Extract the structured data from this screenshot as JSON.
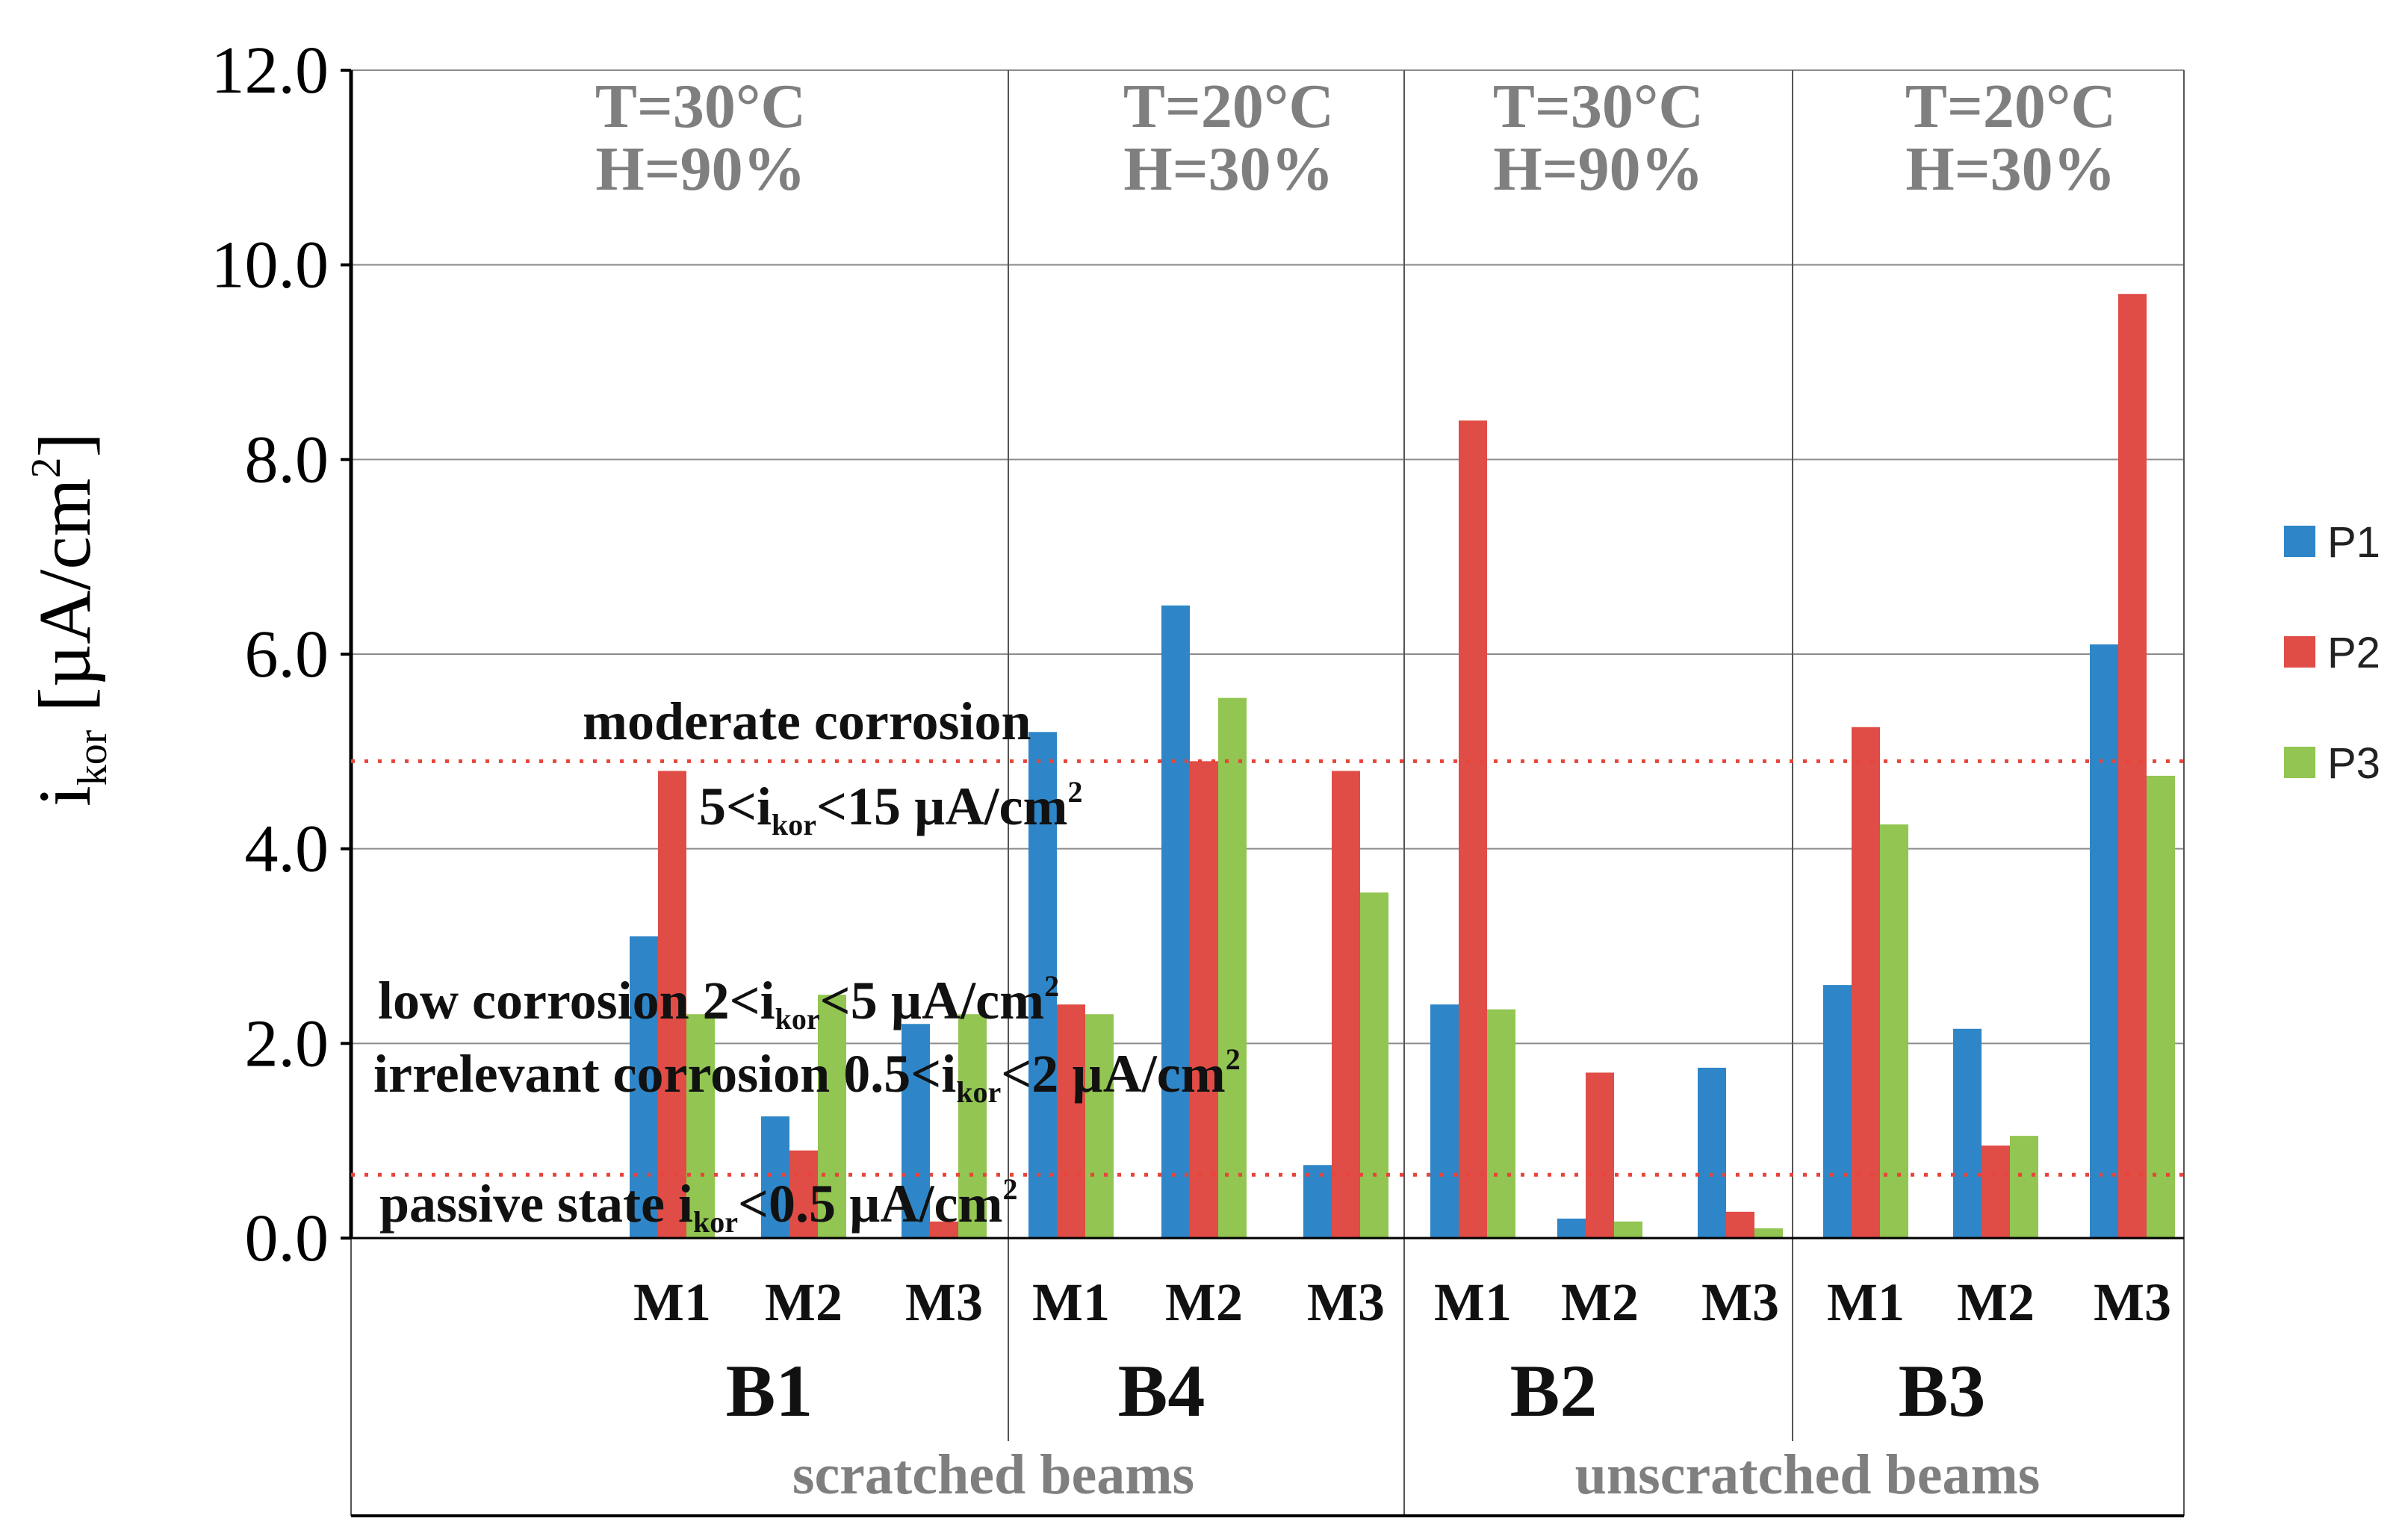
{
  "chart_data": {
    "type": "bar",
    "ylabel_main": "i",
    "ylabel_sub": "kor",
    "ylabel_unit": "[µA/cm",
    "ylabel_sup": "2",
    "ylabel_close": "]",
    "ylim": [
      0,
      12
    ],
    "yticks": [
      "0.0",
      "2.0",
      "4.0",
      "6.0",
      "8.0",
      "10.0",
      "12.0"
    ],
    "grid": true,
    "legend_position": "right",
    "series": [
      {
        "name": "P1",
        "color": "#2E86C8"
      },
      {
        "name": "P2",
        "color": "#E04C46"
      },
      {
        "name": "P3",
        "color": "#92C551"
      }
    ],
    "blocks": [
      {
        "beam": "B1",
        "conditions": [
          "T=30°C",
          "H=90%"
        ],
        "categories": [
          "M1",
          "M2",
          "M3"
        ],
        "values": [
          [
            3.1,
            4.8,
            2.3
          ],
          [
            1.25,
            0.9,
            2.5
          ],
          [
            2.2,
            0.17,
            2.3
          ]
        ]
      },
      {
        "beam": "B4",
        "conditions": [
          "T=20°C",
          "H=30%"
        ],
        "categories": [
          "M1",
          "M2",
          "M3"
        ],
        "values": [
          [
            5.2,
            2.4,
            2.3
          ],
          [
            6.5,
            4.9,
            5.55
          ],
          [
            0.75,
            4.8,
            3.55
          ]
        ]
      },
      {
        "beam": "B2",
        "conditions": [
          "T=30°C",
          "H=90%"
        ],
        "categories": [
          "M1",
          "M2",
          "M3"
        ],
        "values": [
          [
            2.4,
            8.4,
            2.35
          ],
          [
            0.2,
            1.7,
            0.17
          ],
          [
            1.75,
            0.27,
            0.1
          ]
        ]
      },
      {
        "beam": "B3",
        "conditions": [
          "T=20°C",
          "H=30%"
        ],
        "categories": [
          "M1",
          "M2",
          "M3"
        ],
        "values": [
          [
            2.6,
            5.25,
            4.25
          ],
          [
            2.15,
            0.95,
            1.05
          ],
          [
            6.1,
            9.7,
            4.75
          ]
        ]
      }
    ],
    "groups": [
      "scratched beams",
      "unscratched beams"
    ],
    "threshold_lines": [
      4.9,
      0.65
    ],
    "annotations": {
      "moderate": "moderate corrosion",
      "moderate_range_pre": "5<i",
      "moderate_range_sub": "kor",
      "moderate_range_post": "<15 µA/cm",
      "moderate_range_sup": "2",
      "low_pre": "low corrosion 2<i",
      "low_sub": "kor",
      "low_post": "<5 µA/cm",
      "low_sup": "2",
      "irrelevant_pre": "irrelevant corrosion 0.5<i",
      "irrelevant_sub": "kor",
      "irrelevant_post": "<2 µA/cm",
      "irrelevant_sup": "2",
      "passive_pre": "passive state i",
      "passive_sub": "kor",
      "passive_post": "<0.5 µA/cm",
      "passive_sup": "2"
    }
  }
}
